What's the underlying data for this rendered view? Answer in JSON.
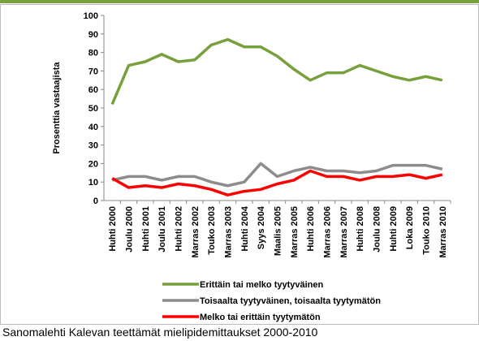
{
  "chart_data": {
    "type": "line",
    "ylabel": "Prosenttia vastaajista",
    "caption": "Sanomalehti Kalevan teettämät mielipidemittaukset 2000-2010",
    "categories": [
      "Huhti 2000",
      "Joulu 2000",
      "Huhti 2001",
      "Joulu 2001",
      "Huhti 2002",
      "Marras 2002",
      "Touko 2003",
      "Marras 2003",
      "Huhti 2004",
      "Syys 2004",
      "Maalis 2005",
      "Marras 2005",
      "Huhti 2006",
      "Marras 2006",
      "Marras 2007",
      "Huhti 2008",
      "Joulu 2008",
      "Huhti 2009",
      "Loka 2009",
      "Touko 2010",
      "Marras 2010"
    ],
    "series": [
      {
        "name": "Erittäin tai melko tyytyväinen",
        "color": "#77a03c",
        "values": [
          52,
          73,
          75,
          79,
          75,
          76,
          84,
          87,
          83,
          83,
          78,
          71,
          65,
          69,
          69,
          73,
          70,
          67,
          65,
          67,
          65
        ]
      },
      {
        "name": "Toisaalta tyytyväinen, toisaalta tyytymätön",
        "color": "#8c8c8c",
        "values": [
          11,
          13,
          13,
          11,
          13,
          13,
          10,
          8,
          10,
          20,
          13,
          16,
          18,
          16,
          16,
          15,
          16,
          19,
          19,
          19,
          17
        ]
      },
      {
        "name": "Melko tai erittäin tyytymätön",
        "color": "#ff0000",
        "values": [
          12,
          7,
          8,
          7,
          9,
          8,
          6,
          3,
          5,
          6,
          9,
          11,
          16,
          13,
          13,
          11,
          13,
          13,
          14,
          12,
          14
        ]
      }
    ],
    "ylim": [
      0,
      100
    ],
    "yticks": [
      0,
      10,
      20,
      30,
      40,
      50,
      60,
      70,
      80,
      90,
      100
    ]
  }
}
